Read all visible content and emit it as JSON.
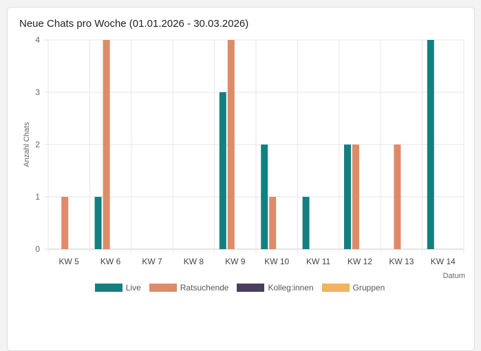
{
  "card": {
    "title": "Neue Chats pro Woche (01.01.2026 - 30.03.2026)"
  },
  "chart_data": {
    "type": "bar",
    "title": "Neue Chats pro Woche (01.01.2026 - 30.03.2026)",
    "xlabel": "Datum",
    "ylabel": "Anzahl Chats",
    "ylim": [
      0,
      4
    ],
    "yticks": [
      0,
      1,
      2,
      3,
      4
    ],
    "grid": true,
    "legend_position": "bottom",
    "categories": [
      "KW 5",
      "KW 6",
      "KW 7",
      "KW 8",
      "KW 9",
      "KW 10",
      "KW 11",
      "KW 12",
      "KW 13",
      "KW 14"
    ],
    "series": [
      {
        "name": "Live",
        "color": "#13807f",
        "values": [
          0,
          1,
          0,
          0,
          3,
          2,
          1,
          2,
          0,
          4
        ]
      },
      {
        "name": "Ratsuchende",
        "color": "#df8a69",
        "values": [
          1,
          4,
          0,
          0,
          4,
          1,
          0,
          2,
          2,
          0
        ]
      },
      {
        "name": "Kolleg:innen",
        "color": "#4a3d5e",
        "values": [
          0,
          0,
          0,
          0,
          0,
          0,
          0,
          0,
          0,
          0
        ]
      },
      {
        "name": "Gruppen",
        "color": "#f0b35e",
        "values": [
          0,
          0,
          0,
          0,
          0,
          0,
          0,
          0,
          0,
          0
        ]
      }
    ]
  }
}
